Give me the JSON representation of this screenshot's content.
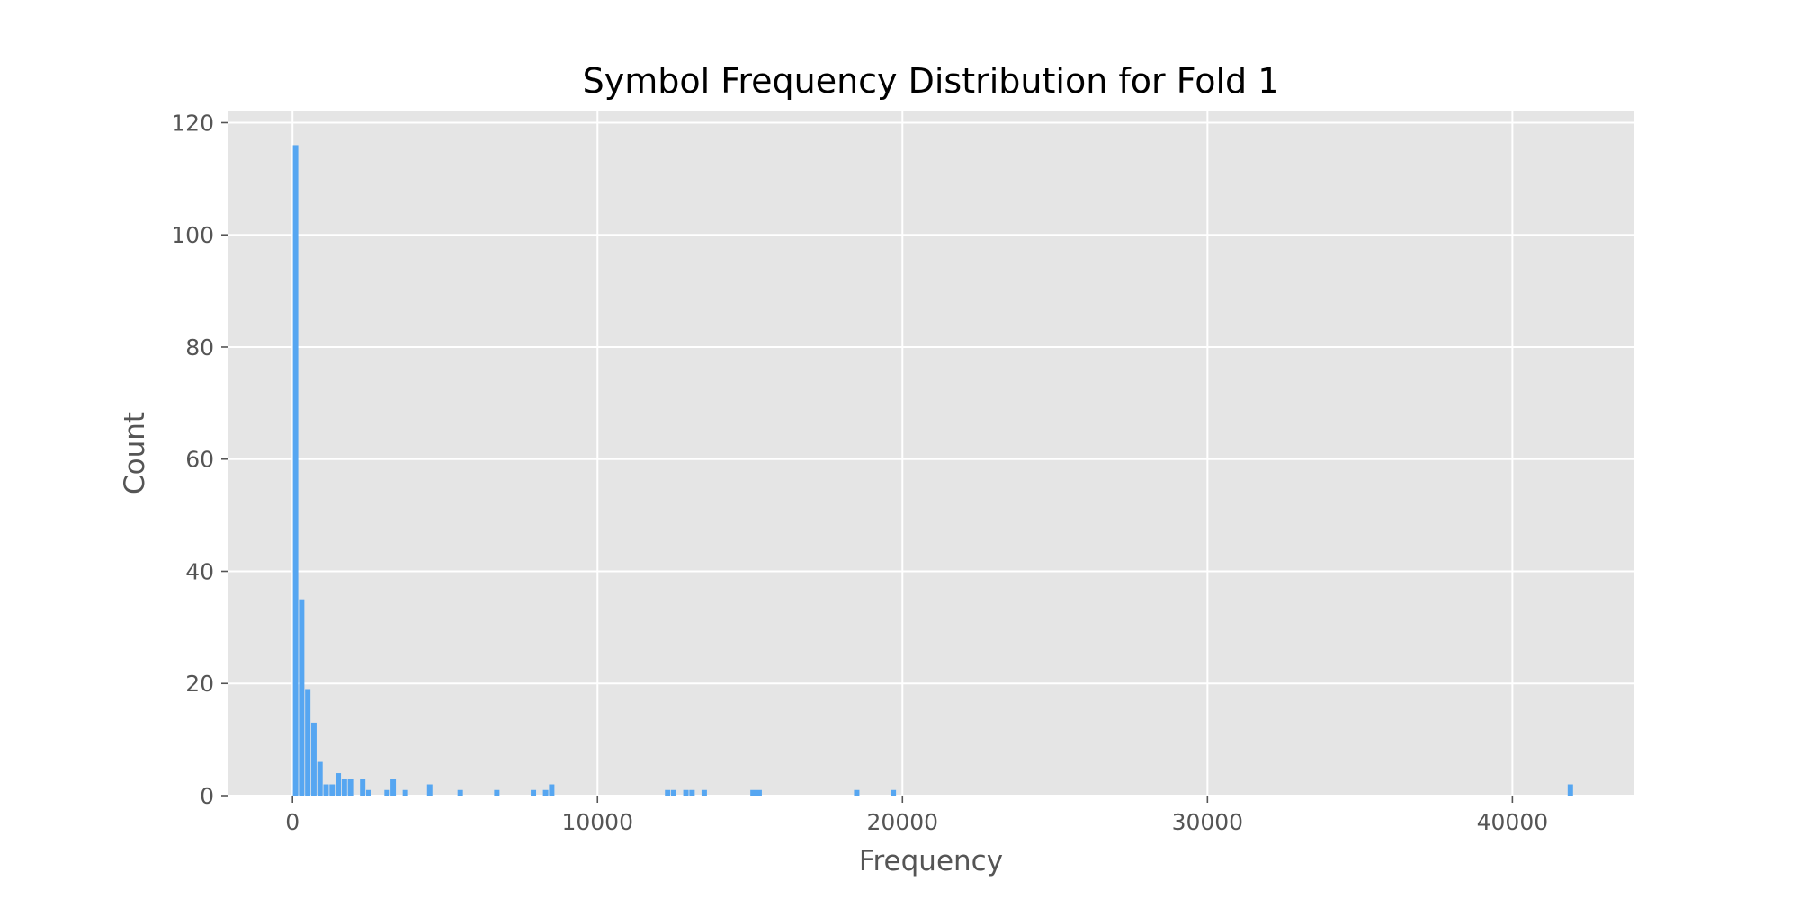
{
  "chart_data": {
    "type": "bar",
    "title": "Symbol Frequency Distribution for Fold 1",
    "xlabel": "Frequency",
    "ylabel": "Count",
    "xlim": [
      -2100,
      44000
    ],
    "ylim": [
      0,
      122
    ],
    "xticks": [
      0,
      10000,
      20000,
      30000,
      40000
    ],
    "xtick_labels": [
      "0",
      "10000",
      "20000",
      "30000",
      "40000"
    ],
    "yticks": [
      0,
      20,
      40,
      60,
      80,
      100,
      120
    ],
    "ytick_labels": [
      "0",
      "20",
      "40",
      "60",
      "80",
      "100",
      "120"
    ],
    "grid": true,
    "bar_color": "#56A6F1",
    "plot_background": "#E5E5E5",
    "bin_width": 200,
    "bins": [
      {
        "x": 100,
        "count": 116
      },
      {
        "x": 300,
        "count": 35
      },
      {
        "x": 500,
        "count": 19
      },
      {
        "x": 700,
        "count": 13
      },
      {
        "x": 900,
        "count": 6
      },
      {
        "x": 1100,
        "count": 2
      },
      {
        "x": 1300,
        "count": 2
      },
      {
        "x": 1500,
        "count": 4
      },
      {
        "x": 1700,
        "count": 3
      },
      {
        "x": 1900,
        "count": 3
      },
      {
        "x": 2300,
        "count": 3
      },
      {
        "x": 2500,
        "count": 1
      },
      {
        "x": 3100,
        "count": 1
      },
      {
        "x": 3300,
        "count": 3
      },
      {
        "x": 3700,
        "count": 1
      },
      {
        "x": 4500,
        "count": 2
      },
      {
        "x": 5500,
        "count": 1
      },
      {
        "x": 6700,
        "count": 1
      },
      {
        "x": 7900,
        "count": 1
      },
      {
        "x": 8300,
        "count": 1
      },
      {
        "x": 8500,
        "count": 2
      },
      {
        "x": 12300,
        "count": 1
      },
      {
        "x": 12500,
        "count": 1
      },
      {
        "x": 12900,
        "count": 1
      },
      {
        "x": 13100,
        "count": 1
      },
      {
        "x": 13500,
        "count": 1
      },
      {
        "x": 15100,
        "count": 1
      },
      {
        "x": 15300,
        "count": 1
      },
      {
        "x": 18500,
        "count": 1
      },
      {
        "x": 19700,
        "count": 1
      },
      {
        "x": 41900,
        "count": 2
      }
    ]
  }
}
